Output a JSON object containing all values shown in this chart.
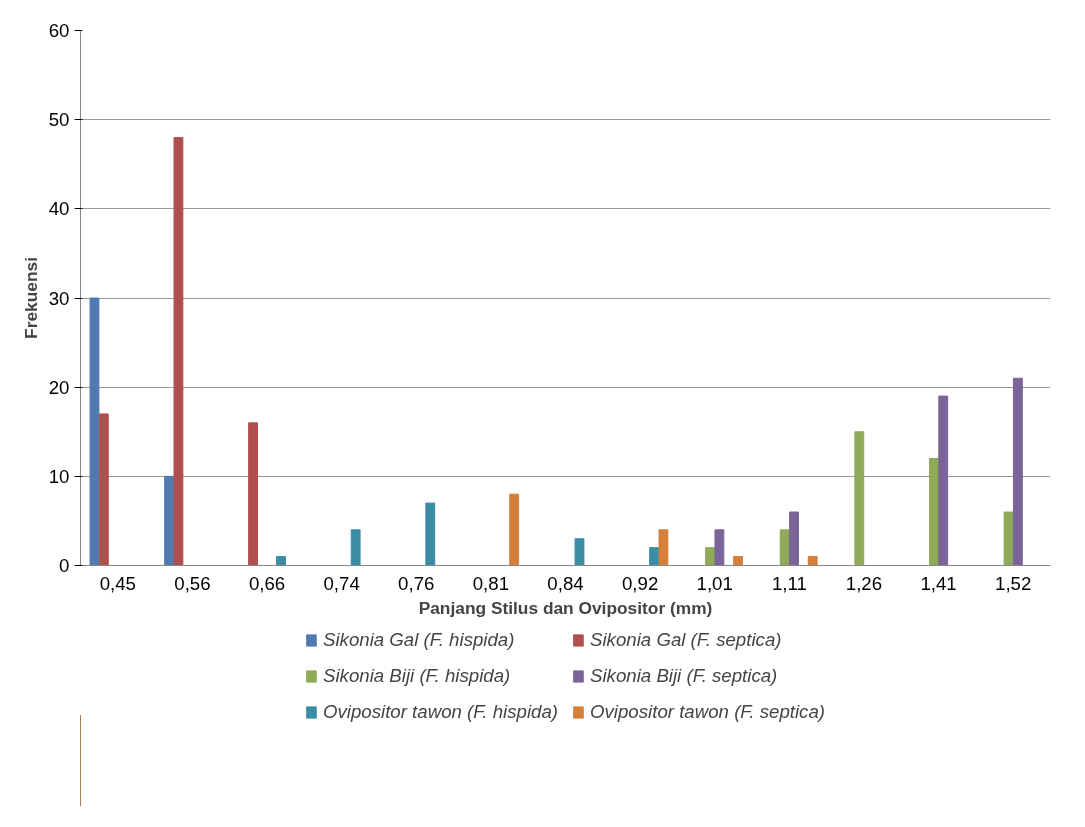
{
  "chart_data": {
    "type": "bar",
    "xlabel": "Panjang Stilus dan Ovipositor (mm)",
    "ylabel": "Frekuensi",
    "categories": [
      "0,45",
      "0,56",
      "0,66",
      "0,74",
      "0,76",
      "0,81",
      "0,84",
      "0,92",
      "1,01",
      "1,11",
      "1,26",
      "1,41",
      "1,52"
    ],
    "series": [
      {
        "name": "Sikonia Gal (F. hispida)",
        "color": "#4f7bb0",
        "values": [
          30,
          10,
          0,
          0,
          0,
          0,
          0,
          0,
          0,
          0,
          0,
          0,
          0
        ]
      },
      {
        "name": "Sikonia Gal (F. septica)",
        "color": "#b0504e",
        "values": [
          17,
          48,
          16,
          0,
          0,
          0,
          0,
          0,
          0,
          0,
          0,
          0,
          0
        ]
      },
      {
        "name": "Sikonia Biji (F. hispida)",
        "color": "#8faa58",
        "values": [
          0,
          0,
          0,
          0,
          0,
          0,
          0,
          0,
          2,
          4,
          15,
          12,
          6
        ]
      },
      {
        "name": "Sikonia Biji (F. septica)",
        "color": "#7a6498",
        "values": [
          0,
          0,
          0,
          0,
          0,
          0,
          0,
          0,
          4,
          6,
          0,
          19,
          21
        ]
      },
      {
        "name": "Ovipositor tawon (F. hispida)",
        "color": "#3b8ca5",
        "values": [
          0,
          0,
          1,
          4,
          7,
          0,
          3,
          2,
          0,
          0,
          0,
          0,
          0
        ]
      },
      {
        "name": "Ovipositor tawon (F. septica)",
        "color": "#d57f3a",
        "values": [
          0,
          0,
          0,
          0,
          0,
          8,
          0,
          4,
          1,
          1,
          0,
          0,
          0
        ]
      }
    ],
    "ylim": [
      0,
      60
    ],
    "yticks": [
      0,
      10,
      20,
      30,
      40,
      50,
      60
    ],
    "grid": "y",
    "legend": "bottom"
  }
}
